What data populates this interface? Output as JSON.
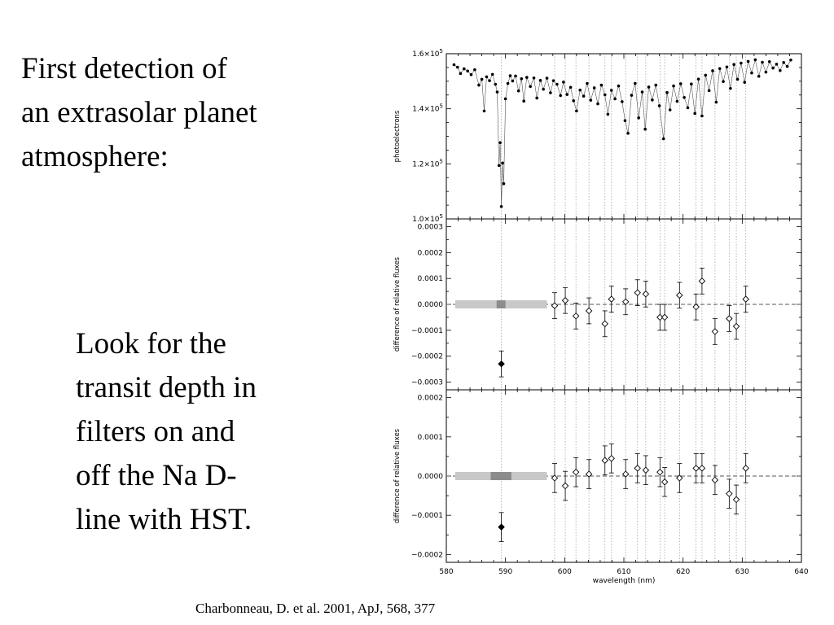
{
  "slide": {
    "title_lines": [
      "First detection of",
      "an extrasolar planet",
      "atmosphere:"
    ],
    "body_lines": [
      "Look for the",
      "transit depth in",
      "filters on and",
      "off the Na D-",
      "line with HST."
    ],
    "citation": "Charbonneau, D. et al. 2001, ApJ, 568, 377"
  },
  "chart_data": [
    {
      "type": "scatter",
      "panel": "spectrum",
      "xlabel": "",
      "ylabel": "photoelectrons",
      "xlim": [
        580,
        640
      ],
      "ylim": [
        100000,
        160000
      ],
      "y_ticks": [
        {
          "value": 100000,
          "mantissa": "1.0×10",
          "exp": "5"
        },
        {
          "value": 120000,
          "mantissa": "1.2×10",
          "exp": "5"
        },
        {
          "value": 140000,
          "mantissa": "1.4×10",
          "exp": "5"
        },
        {
          "value": 160000,
          "mantissa": "1.6×10",
          "exp": "5"
        }
      ],
      "filter_centers_nm": [
        589.3,
        598.3,
        600.1,
        601.9,
        604.1,
        606.8,
        607.9,
        610.3,
        612.3,
        613.7,
        616.1,
        616.9,
        619.4,
        622.2,
        623.2,
        625.4,
        627.8,
        629.0,
        630.6
      ],
      "points": [
        [
          581.3,
          156000
        ],
        [
          581.9,
          155100
        ],
        [
          582.4,
          152800
        ],
        [
          583.0,
          154500
        ],
        [
          583.6,
          153700
        ],
        [
          584.2,
          152400
        ],
        [
          584.8,
          154200
        ],
        [
          585.5,
          148600
        ],
        [
          586.0,
          150700
        ],
        [
          586.4,
          139200
        ],
        [
          586.8,
          151600
        ],
        [
          587.3,
          150200
        ],
        [
          587.8,
          152500
        ],
        [
          588.3,
          148900
        ],
        [
          588.6,
          146100
        ],
        [
          588.9,
          119400
        ],
        [
          589.1,
          127700
        ],
        [
          589.3,
          104500
        ],
        [
          589.5,
          120300
        ],
        [
          589.7,
          112800
        ],
        [
          590.0,
          143600
        ],
        [
          590.4,
          149200
        ],
        [
          590.8,
          152000
        ],
        [
          591.2,
          150100
        ],
        [
          591.7,
          151900
        ],
        [
          592.2,
          146500
        ],
        [
          592.7,
          150900
        ],
        [
          593.1,
          142800
        ],
        [
          593.6,
          151400
        ],
        [
          594.2,
          148100
        ],
        [
          594.8,
          151200
        ],
        [
          595.3,
          143900
        ],
        [
          595.9,
          150300
        ],
        [
          596.4,
          147100
        ],
        [
          597.0,
          151100
        ],
        [
          597.6,
          145800
        ],
        [
          598.1,
          150200
        ],
        [
          598.7,
          148900
        ],
        [
          599.3,
          144800
        ],
        [
          599.8,
          149700
        ],
        [
          600.4,
          145200
        ],
        [
          601.0,
          147800
        ],
        [
          601.5,
          142900
        ],
        [
          602.0,
          139200
        ],
        [
          602.6,
          146800
        ],
        [
          603.2,
          144600
        ],
        [
          603.8,
          149200
        ],
        [
          604.4,
          143100
        ],
        [
          605.0,
          147600
        ],
        [
          605.6,
          141800
        ],
        [
          606.2,
          148600
        ],
        [
          606.8,
          145100
        ],
        [
          607.3,
          138000
        ],
        [
          607.9,
          146700
        ],
        [
          608.5,
          143600
        ],
        [
          609.1,
          148300
        ],
        [
          609.7,
          142600
        ],
        [
          610.2,
          135700
        ],
        [
          610.7,
          131100
        ],
        [
          611.3,
          144900
        ],
        [
          611.9,
          149200
        ],
        [
          612.5,
          136700
        ],
        [
          613.1,
          146100
        ],
        [
          613.6,
          132600
        ],
        [
          614.2,
          147900
        ],
        [
          614.8,
          143200
        ],
        [
          615.4,
          148600
        ],
        [
          616.0,
          141100
        ],
        [
          616.7,
          129100
        ],
        [
          617.3,
          145900
        ],
        [
          617.8,
          139600
        ],
        [
          618.4,
          148300
        ],
        [
          619.0,
          142700
        ],
        [
          619.6,
          149100
        ],
        [
          620.2,
          144100
        ],
        [
          620.8,
          140400
        ],
        [
          621.4,
          149000
        ],
        [
          622.0,
          138300
        ],
        [
          622.6,
          150800
        ],
        [
          623.2,
          137400
        ],
        [
          623.8,
          152200
        ],
        [
          624.4,
          146600
        ],
        [
          625.0,
          153800
        ],
        [
          625.6,
          142400
        ],
        [
          626.2,
          154600
        ],
        [
          626.8,
          149900
        ],
        [
          627.4,
          155200
        ],
        [
          628.0,
          147400
        ],
        [
          628.6,
          156100
        ],
        [
          629.2,
          150700
        ],
        [
          629.8,
          156600
        ],
        [
          630.4,
          149600
        ],
        [
          631.0,
          157200
        ],
        [
          631.6,
          153000
        ],
        [
          632.2,
          157800
        ],
        [
          632.8,
          151800
        ],
        [
          633.4,
          156900
        ],
        [
          634.0,
          153300
        ],
        [
          634.6,
          157100
        ],
        [
          635.2,
          154800
        ],
        [
          635.8,
          156200
        ],
        [
          636.4,
          153900
        ],
        [
          637.0,
          156800
        ],
        [
          637.6,
          155400
        ],
        [
          638.2,
          157700
        ]
      ]
    },
    {
      "type": "scatter",
      "panel": "difference-1",
      "ylabel": "difference of relative fluxes",
      "xlim": [
        580,
        640
      ],
      "ylim": [
        -0.00033,
        0.00033
      ],
      "y_ticks": [
        "0.0003",
        "0.0002",
        "0.0001",
        "0.0000",
        "−0.0001",
        "−0.0002",
        "−0.0003"
      ],
      "y_tick_values": [
        0.0003,
        0.0002,
        0.0001,
        0.0,
        -0.0001,
        -0.0002,
        -0.0003
      ],
      "reference_line": 0.0,
      "band": {
        "x": [
          581.5,
          597.0
        ],
        "y": 0.0
      },
      "band_core": {
        "x": [
          588.5,
          590.0
        ]
      },
      "na_point": {
        "x": 589.3,
        "y": -0.00023,
        "err": 5e-05
      },
      "points": [
        {
          "x": 598.3,
          "y": -5e-06,
          "err": 5e-05
        },
        {
          "x": 600.1,
          "y": 1.5e-05,
          "err": 5e-05
        },
        {
          "x": 601.9,
          "y": -4.5e-05,
          "err": 5e-05
        },
        {
          "x": 604.1,
          "y": -2.5e-05,
          "err": 5e-05
        },
        {
          "x": 606.8,
          "y": -7.5e-05,
          "err": 5e-05
        },
        {
          "x": 607.9,
          "y": 2e-05,
          "err": 5e-05
        },
        {
          "x": 610.3,
          "y": 1e-05,
          "err": 5e-05
        },
        {
          "x": 612.3,
          "y": 4.5e-05,
          "err": 5e-05
        },
        {
          "x": 613.7,
          "y": 4e-05,
          "err": 5e-05
        },
        {
          "x": 616.1,
          "y": -5e-05,
          "err": 5e-05
        },
        {
          "x": 616.9,
          "y": -5e-05,
          "err": 5e-05
        },
        {
          "x": 619.4,
          "y": 3.5e-05,
          "err": 5e-05
        },
        {
          "x": 622.2,
          "y": -1e-05,
          "err": 5e-05
        },
        {
          "x": 623.2,
          "y": 9e-05,
          "err": 5e-05
        },
        {
          "x": 625.4,
          "y": -0.000105,
          "err": 5e-05
        },
        {
          "x": 627.8,
          "y": -5.5e-05,
          "err": 5e-05
        },
        {
          "x": 629.0,
          "y": -8.5e-05,
          "err": 5e-05
        },
        {
          "x": 630.6,
          "y": 2e-05,
          "err": 5e-05
        }
      ]
    },
    {
      "type": "scatter",
      "panel": "difference-2",
      "ylabel": "difference of relative fluxes",
      "xlabel": "wavelength (nm)",
      "xlim": [
        580,
        640
      ],
      "ylim": [
        -0.00022,
        0.00022
      ],
      "x_ticks": [
        "580",
        "590",
        "600",
        "610",
        "620",
        "630",
        "640"
      ],
      "x_tick_values": [
        580,
        590,
        600,
        610,
        620,
        630,
        640
      ],
      "y_ticks": [
        "0.0002",
        "0.0001",
        "0.0000",
        "−0.0001",
        "−0.0002"
      ],
      "y_tick_values": [
        0.0002,
        0.0001,
        0.0,
        -0.0001,
        -0.0002
      ],
      "reference_line": 0.0,
      "band": {
        "x": [
          581.5,
          597.0
        ],
        "y": 0.0
      },
      "band_core": {
        "x": [
          587.5,
          591.0
        ]
      },
      "na_point": {
        "x": 589.3,
        "y": -0.00013,
        "err": 3.7e-05
      },
      "points": [
        {
          "x": 598.3,
          "y": -5e-06,
          "err": 3.7e-05
        },
        {
          "x": 600.1,
          "y": -2.5e-05,
          "err": 3.7e-05
        },
        {
          "x": 601.9,
          "y": 1e-05,
          "err": 3.7e-05
        },
        {
          "x": 604.1,
          "y": 5e-06,
          "err": 3.7e-05
        },
        {
          "x": 606.8,
          "y": 4e-05,
          "err": 3.7e-05
        },
        {
          "x": 607.9,
          "y": 4.5e-05,
          "err": 3.7e-05
        },
        {
          "x": 610.3,
          "y": 5e-06,
          "err": 3.7e-05
        },
        {
          "x": 612.3,
          "y": 2e-05,
          "err": 3.7e-05
        },
        {
          "x": 613.7,
          "y": 1.5e-05,
          "err": 3.7e-05
        },
        {
          "x": 616.1,
          "y": 1e-05,
          "err": 3.7e-05
        },
        {
          "x": 616.9,
          "y": -1.5e-05,
          "err": 3.7e-05
        },
        {
          "x": 619.4,
          "y": -5e-06,
          "err": 3.7e-05
        },
        {
          "x": 622.2,
          "y": 2e-05,
          "err": 3.7e-05
        },
        {
          "x": 623.2,
          "y": 2e-05,
          "err": 3.7e-05
        },
        {
          "x": 625.4,
          "y": -1e-05,
          "err": 3.7e-05
        },
        {
          "x": 627.8,
          "y": -4.5e-05,
          "err": 3.7e-05
        },
        {
          "x": 629.0,
          "y": -6e-05,
          "err": 3.7e-05
        },
        {
          "x": 630.6,
          "y": 2e-05,
          "err": 3.7e-05
        }
      ]
    }
  ]
}
